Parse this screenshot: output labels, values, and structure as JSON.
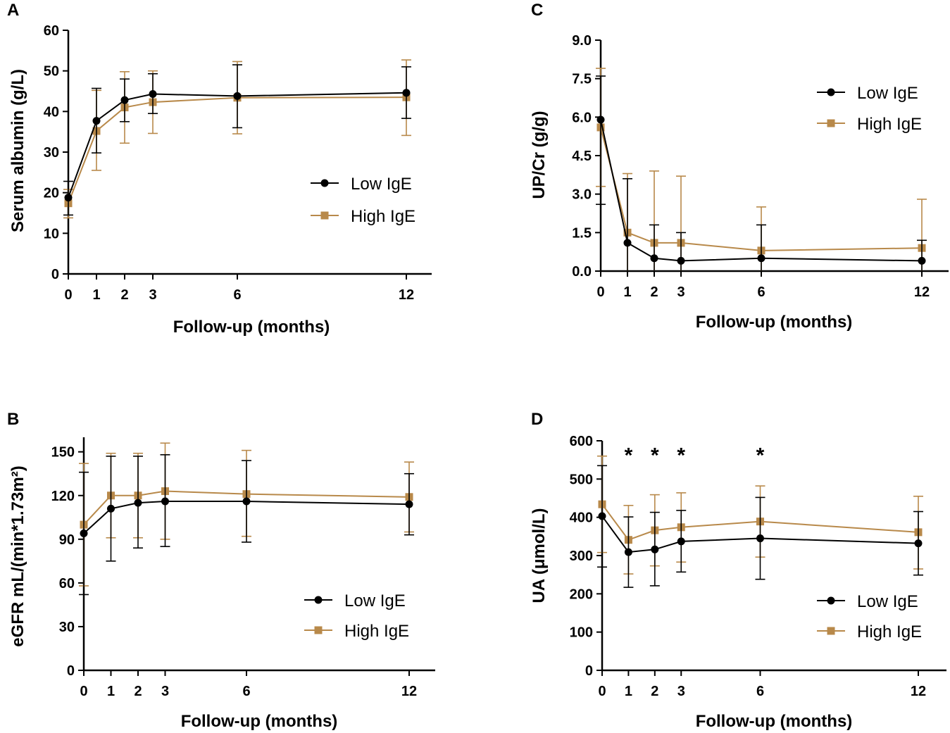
{
  "colors": {
    "low": "#000000",
    "high": "#b8894a"
  },
  "chart_data": [
    {
      "panel": "A",
      "type": "line",
      "x": [
        0,
        1,
        2,
        3,
        6,
        12
      ],
      "xlabel": "Follow-up (months)",
      "ylabel": "Serum albumin (g/L)",
      "ylim": [
        0,
        60
      ],
      "yticks": [
        "0",
        "10",
        "20",
        "30",
        "40",
        "50",
        "60"
      ],
      "yticks_values": [
        0,
        10,
        20,
        30,
        40,
        50,
        60
      ],
      "legend": {
        "position": "center-right",
        "items": [
          "Low IgE",
          "High IgE"
        ]
      },
      "annotations": [],
      "series": [
        {
          "name": "Low IgE",
          "values": [
            18.8,
            37.7,
            42.8,
            44.3,
            43.8,
            44.6
          ],
          "err_high": [
            22.8,
            45.7,
            48.0,
            49.3,
            51.5,
            51.0
          ],
          "err_low": [
            14.5,
            29.8,
            37.5,
            39.5,
            36.0,
            38.3
          ]
        },
        {
          "name": "High IgE",
          "values": [
            17.4,
            35.2,
            41.0,
            42.3,
            43.4,
            43.5
          ],
          "err_high": [
            20.8,
            45.2,
            49.8,
            50.0,
            52.3,
            52.7
          ],
          "err_low": [
            13.8,
            25.5,
            32.2,
            34.6,
            34.5,
            34.1
          ]
        }
      ]
    },
    {
      "panel": "B",
      "type": "line",
      "x": [
        0,
        1,
        2,
        3,
        6,
        12
      ],
      "xlabel": "Follow-up (months)",
      "ylabel": "eGFR mL/(min*1.73m²)",
      "ylim": [
        0,
        160
      ],
      "yticks": [
        "0",
        "30",
        "60",
        "90",
        "120",
        "150"
      ],
      "yticks_values": [
        0,
        30,
        60,
        90,
        120,
        150
      ],
      "legend": {
        "position": "bottom-right",
        "items": [
          "Low IgE",
          "High IgE"
        ]
      },
      "annotations": [],
      "series": [
        {
          "name": "Low IgE",
          "values": [
            94,
            111,
            115,
            116,
            116,
            114
          ],
          "err_high": [
            136,
            147,
            147,
            148,
            144,
            135
          ],
          "err_low": [
            52,
            75,
            84,
            85,
            88,
            93
          ]
        },
        {
          "name": "High IgE",
          "values": [
            100,
            120,
            120,
            123,
            121,
            119
          ],
          "err_high": [
            142,
            149,
            149,
            156,
            151,
            143
          ],
          "err_low": [
            58,
            91,
            91,
            90,
            92,
            95
          ]
        }
      ]
    },
    {
      "panel": "C",
      "type": "line",
      "x": [
        0,
        1,
        2,
        3,
        6,
        12
      ],
      "xlabel": "Follow-up (months)",
      "ylabel": "UP/Cr (g/g)",
      "ylim": [
        0,
        9
      ],
      "yticks": [
        "0.0",
        "1.5",
        "3.0",
        "4.5",
        "6.0",
        "7.5",
        "9.0"
      ],
      "yticks_values": [
        0,
        1.5,
        3,
        4.5,
        6,
        7.5,
        9
      ],
      "legend": {
        "position": "top-right",
        "items": [
          "Low IgE",
          "High IgE"
        ]
      },
      "annotations": [],
      "series": [
        {
          "name": "Low IgE",
          "values": [
            5.9,
            1.1,
            0.5,
            0.4,
            0.5,
            0.4
          ],
          "err_high": [
            7.6,
            3.6,
            1.8,
            1.5,
            1.8,
            1.2
          ],
          "err_low": [
            2.6,
            0,
            0,
            0,
            0,
            0
          ]
        },
        {
          "name": "High IgE",
          "values": [
            5.6,
            1.5,
            1.1,
            1.1,
            0.8,
            0.9
          ],
          "err_high": [
            7.9,
            3.8,
            3.9,
            3.7,
            2.5,
            2.8
          ],
          "err_low": [
            3.3,
            0,
            0,
            0,
            0,
            0
          ]
        }
      ]
    },
    {
      "panel": "D",
      "type": "line",
      "x": [
        0,
        1,
        2,
        3,
        6,
        12
      ],
      "xlabel": "Follow-up (months)",
      "ylabel": "UA (μmol/L)",
      "ylim": [
        0,
        600
      ],
      "yticks": [
        "0",
        "100",
        "200",
        "300",
        "400",
        "500",
        "600"
      ],
      "yticks_values": [
        0,
        100,
        200,
        300,
        400,
        500,
        600
      ],
      "legend": {
        "position": "bottom-right",
        "items": [
          "Low IgE",
          "High IgE"
        ]
      },
      "annotations": [
        {
          "x": 1,
          "text": "*"
        },
        {
          "x": 2,
          "text": "*"
        },
        {
          "x": 3,
          "text": "*"
        },
        {
          "x": 6,
          "text": "*"
        }
      ],
      "series": [
        {
          "name": "Low IgE",
          "values": [
            403,
            309,
            316,
            337,
            345,
            332
          ],
          "err_high": [
            535,
            401,
            413,
            418,
            452,
            415
          ],
          "err_low": [
            270,
            217,
            221,
            257,
            238,
            249
          ]
        },
        {
          "name": "High IgE",
          "values": [
            434,
            341,
            366,
            374,
            389,
            361
          ],
          "err_high": [
            560,
            431,
            459,
            464,
            482,
            455
          ],
          "err_low": [
            308,
            252,
            273,
            283,
            296,
            265
          ]
        }
      ]
    }
  ]
}
